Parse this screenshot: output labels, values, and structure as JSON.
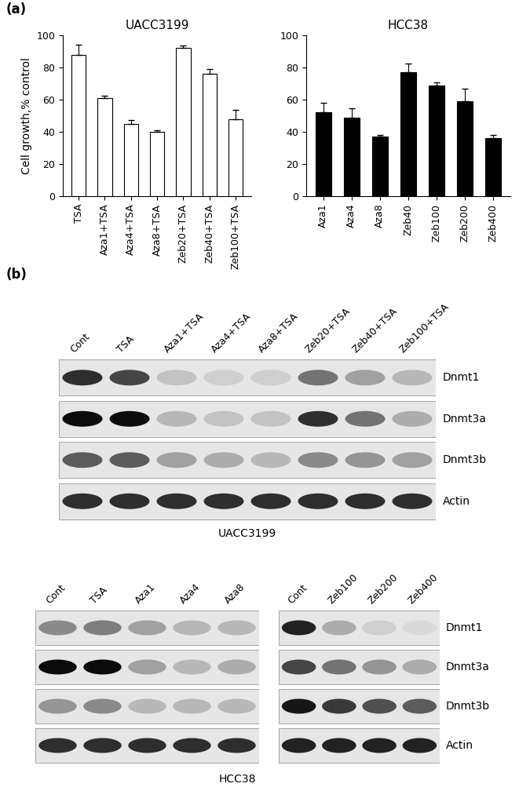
{
  "chart_data": [
    {
      "type": "bar",
      "title": "UACC3199",
      "y_label": "Cell growth,% control",
      "categories": [
        "TSA",
        "Aza1+TSA",
        "Aza4+TSA",
        "Aza8+TSA",
        "Zeb20+TSA",
        "Zeb40+TSA",
        "Zeb100+TSA"
      ],
      "values": [
        88,
        61,
        45,
        40,
        92,
        76,
        48
      ],
      "errors": [
        6,
        1.5,
        2.5,
        1,
        1.5,
        3,
        5.5
      ],
      "color": "#ffffff",
      "ylim": [
        0,
        100
      ],
      "yticks": [
        0,
        20,
        40,
        60,
        80,
        100
      ]
    },
    {
      "type": "bar",
      "title": "HCC38",
      "categories": [
        "Aza1",
        "Aza4",
        "Aza8",
        "Zeb40",
        "Zeb100",
        "Zeb200",
        "Zeb400"
      ],
      "values": [
        52,
        49,
        37,
        77,
        69,
        59,
        36
      ],
      "errors": [
        6,
        5.5,
        1,
        5.5,
        1.5,
        8,
        2
      ],
      "color": "#000000",
      "ylim": [
        0,
        100
      ],
      "yticks": [
        0,
        20,
        40,
        60,
        80,
        100
      ]
    }
  ],
  "panel_labels": [
    "(a)",
    "(b)"
  ],
  "blots": [
    {
      "cell_line": "UACC3199",
      "proteins": [
        "Dnmt1",
        "Dnmt3a",
        "Dnmt3b",
        "Actin"
      ],
      "groups": [
        {
          "lanes": [
            "Cont",
            "TSA",
            "Aza1+TSA",
            "Aza4+TSA",
            "Aza8+TSA",
            "Zeb20+TSA",
            "Zeb40+TSA",
            "Zeb100+TSA"
          ],
          "band_intensity": [
            [
              0.8,
              0.7,
              0.15,
              0.1,
              0.1,
              0.5,
              0.3,
              0.2
            ],
            [
              0.95,
              0.95,
              0.2,
              0.15,
              0.15,
              0.8,
              0.5,
              0.25
            ],
            [
              0.6,
              0.6,
              0.3,
              0.25,
              0.2,
              0.4,
              0.35,
              0.3
            ],
            [
              0.8,
              0.8,
              0.8,
              0.8,
              0.8,
              0.8,
              0.8,
              0.8
            ]
          ]
        }
      ]
    },
    {
      "cell_line": "HCC38",
      "proteins": [
        "Dnmt1",
        "Dnmt3a",
        "Dnmt3b",
        "Actin"
      ],
      "groups": [
        {
          "lanes": [
            "Cont",
            "TSA",
            "Aza1",
            "Aza4",
            "Aza8"
          ],
          "band_intensity": [
            [
              0.4,
              0.45,
              0.3,
              0.2,
              0.2
            ],
            [
              0.95,
              0.95,
              0.3,
              0.2,
              0.25
            ],
            [
              0.35,
              0.4,
              0.2,
              0.2,
              0.2
            ],
            [
              0.8,
              0.8,
              0.8,
              0.8,
              0.8
            ]
          ]
        },
        {
          "lanes": [
            "Cont",
            "Zeb100",
            "Zeb200",
            "Zeb400"
          ],
          "band_intensity": [
            [
              0.85,
              0.25,
              0.1,
              0.05
            ],
            [
              0.7,
              0.5,
              0.35,
              0.25
            ],
            [
              0.9,
              0.75,
              0.65,
              0.6
            ],
            [
              0.85,
              0.85,
              0.85,
              0.85
            ]
          ]
        }
      ]
    }
  ]
}
